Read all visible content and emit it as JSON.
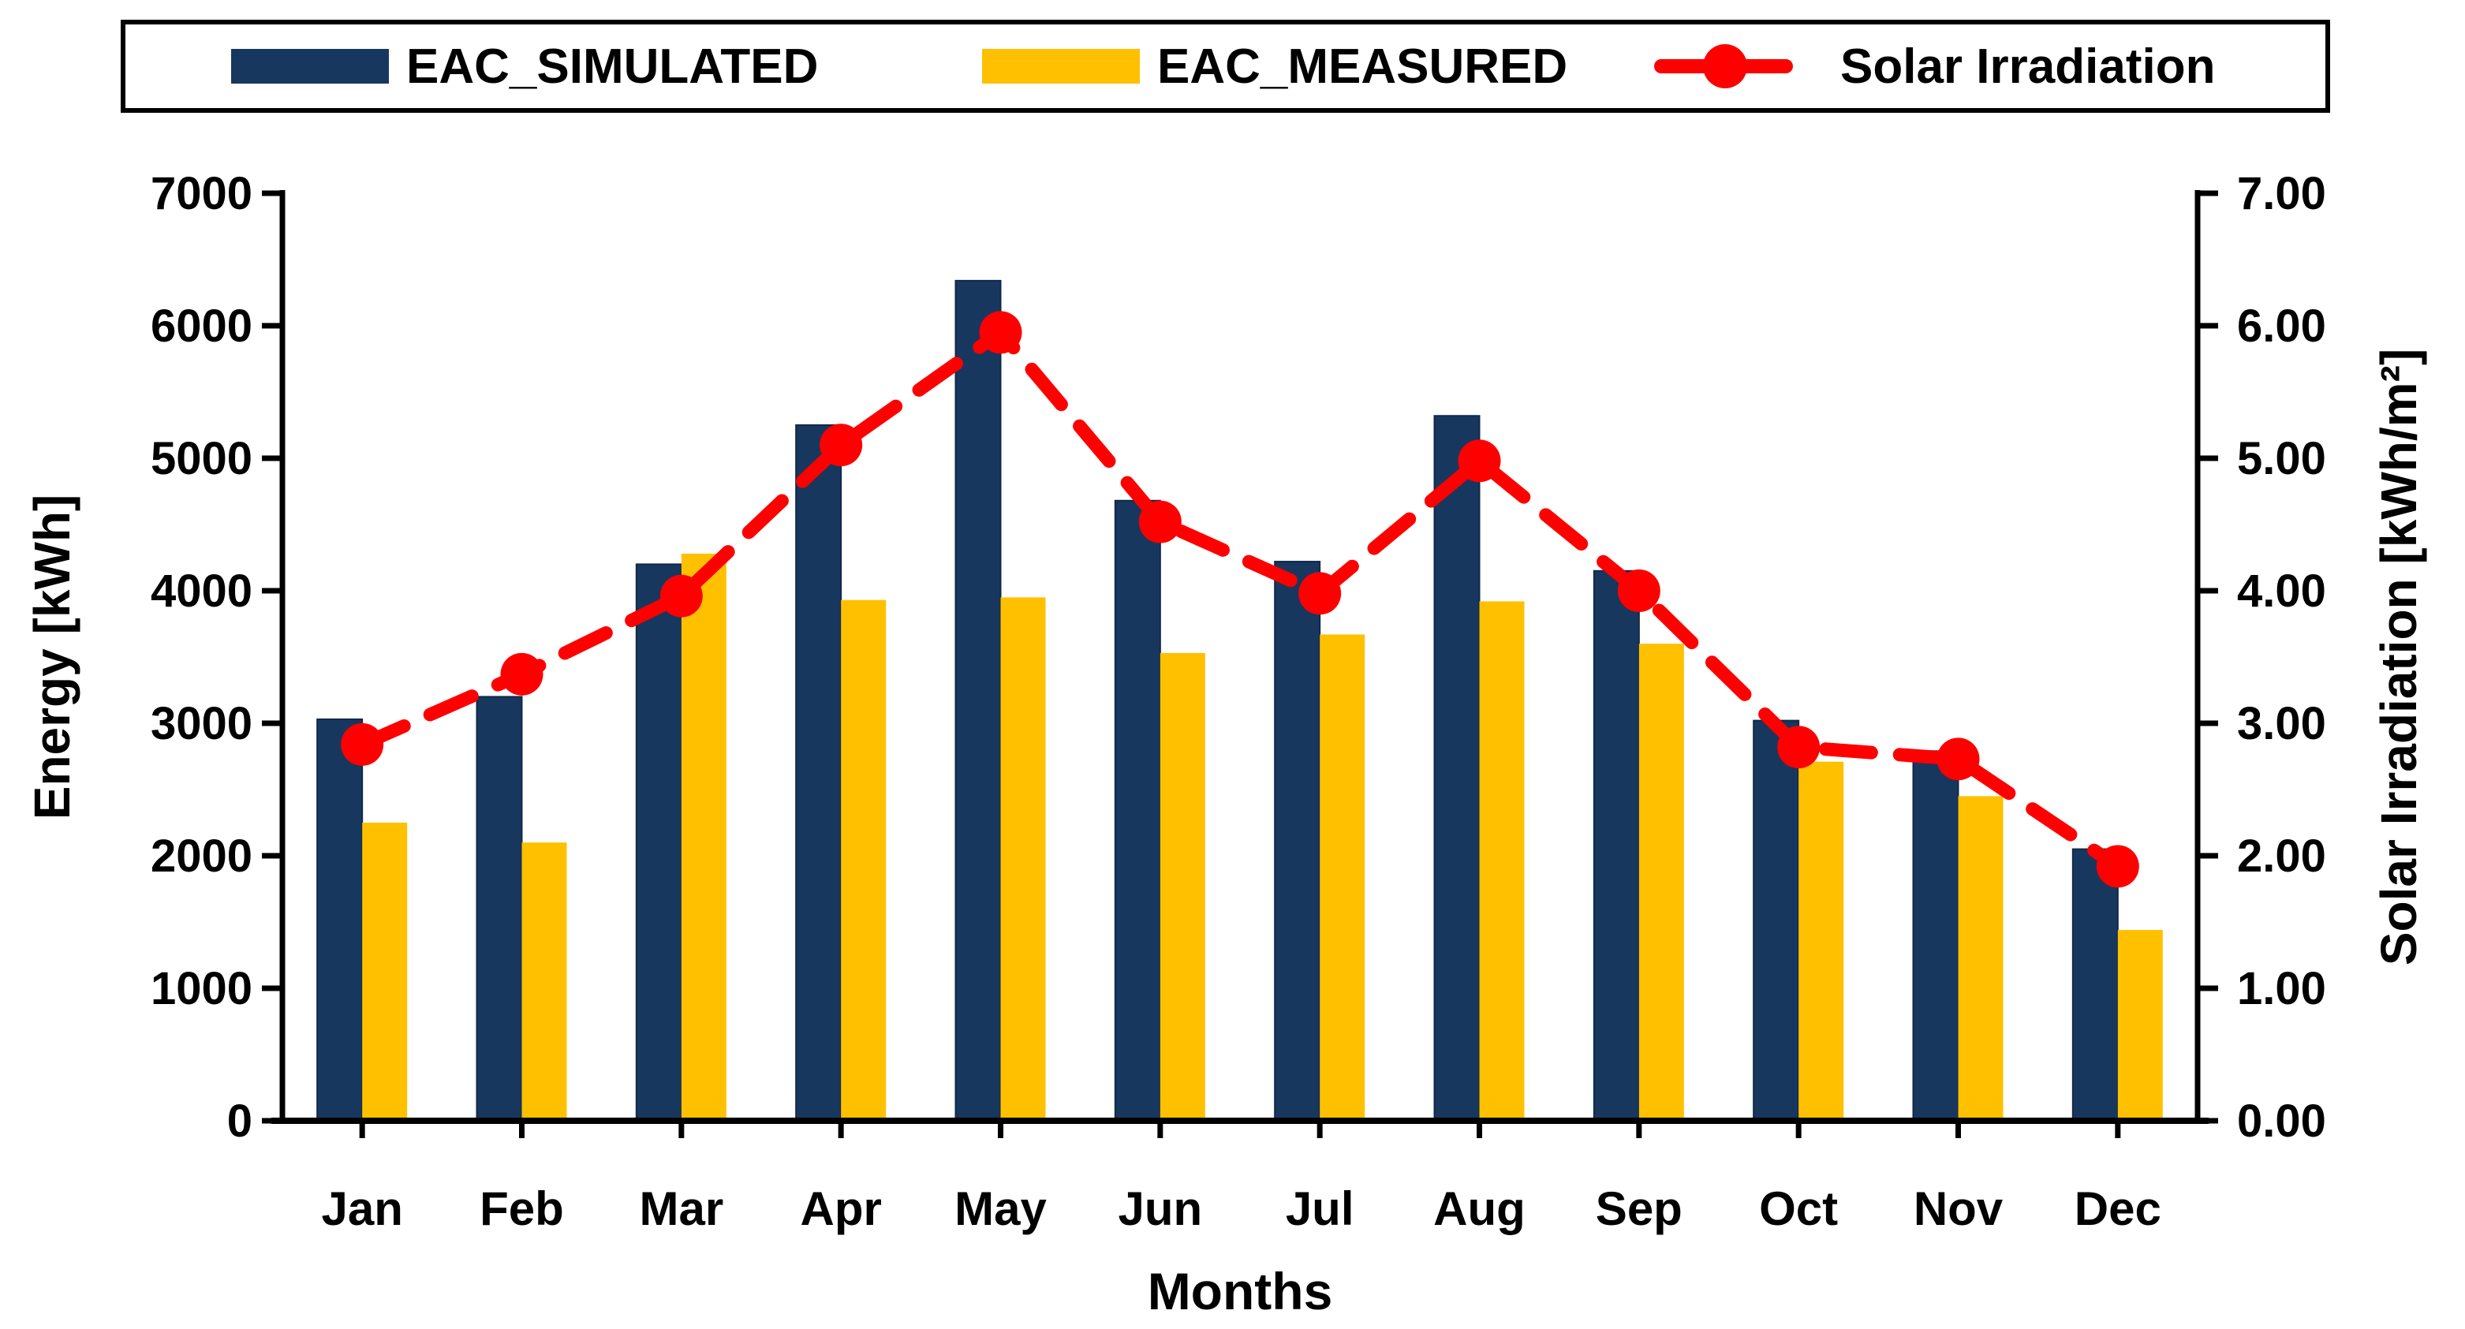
{
  "colors": {
    "simulated": "#17375E",
    "simulated_edge": "#10294A",
    "measured": "#FFC000",
    "irradiation": "#FF0000",
    "axis": "#000000",
    "background": "#FFFFFF"
  },
  "chart_data": {
    "type": "bar",
    "title": "",
    "categories": [
      "Jan",
      "Feb",
      "Mar",
      "Apr",
      "May",
      "Jun",
      "Jul",
      "Aug",
      "Sep",
      "Oct",
      "Nov",
      "Dec"
    ],
    "series": [
      {
        "name": "EAC_SIMULATED",
        "kind": "bar",
        "axis": "left",
        "color": "#17375E",
        "values": [
          3030,
          3200,
          4200,
          5250,
          6340,
          4680,
          4220,
          5320,
          4150,
          3020,
          2790,
          2050
        ]
      },
      {
        "name": "EAC_MEASURED",
        "kind": "bar",
        "axis": "left",
        "color": "#FFC000",
        "values": [
          2250,
          2100,
          4280,
          3930,
          3950,
          3530,
          3670,
          3920,
          3600,
          2710,
          2450,
          1440
        ]
      },
      {
        "name": "Solar Irradiation",
        "kind": "line",
        "axis": "right",
        "color": "#FF0000",
        "values": [
          2.84,
          3.37,
          3.96,
          5.1,
          5.95,
          4.52,
          3.98,
          4.98,
          4.0,
          2.82,
          2.73,
          1.92
        ]
      }
    ],
    "left_axis": {
      "title": "Energy [kWh]",
      "min": 0,
      "max": 7000,
      "step": 1000,
      "tick_labels": [
        "0",
        "1000",
        "2000",
        "3000",
        "4000",
        "5000",
        "6000",
        "7000"
      ]
    },
    "right_axis": {
      "title": "Solar Irradiation [kWh/m²]",
      "min": 0,
      "max": 7,
      "step": 1,
      "tick_labels": [
        "0.00",
        "1.00",
        "2.00",
        "3.00",
        "4.00",
        "5.00",
        "6.00",
        "7.00"
      ]
    },
    "x_axis": {
      "title": "Months"
    },
    "legend_position": "top",
    "grid": false
  }
}
